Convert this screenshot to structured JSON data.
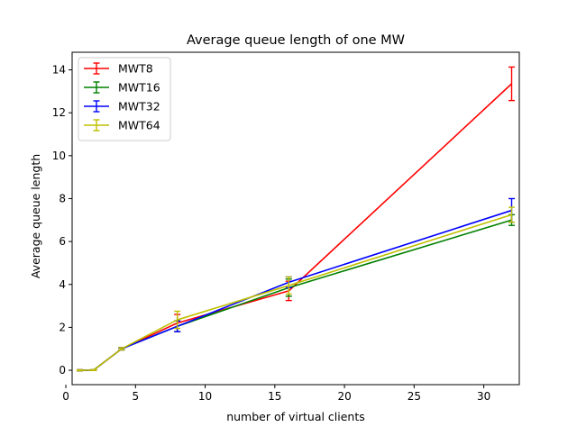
{
  "chart_data": {
    "type": "line",
    "title": "Average queue length of one MW",
    "xlabel": "number of virtual clients",
    "ylabel": "Average queue length",
    "xlim": [
      0.45,
      32.55
    ],
    "ylim": [
      -0.67,
      14.82
    ],
    "xticks": [
      0,
      5,
      10,
      15,
      20,
      25,
      30
    ],
    "yticks": [
      0,
      2,
      4,
      6,
      8,
      10,
      12,
      14
    ],
    "grid": false,
    "legend_position": "top-left",
    "series": [
      {
        "name": "MWT8",
        "color": "#ff0000",
        "points": [
          {
            "x": 1,
            "y": 0.0,
            "err": 0.02
          },
          {
            "x": 2,
            "y": 0.01,
            "err": 0.02
          },
          {
            "x": 4,
            "y": 1.0,
            "err": 0.05
          },
          {
            "x": 8,
            "y": 2.2,
            "err": 0.4
          },
          {
            "x": 16,
            "y": 3.7,
            "err": 0.45
          },
          {
            "x": 32,
            "y": 13.35,
            "err": 0.78
          }
        ]
      },
      {
        "name": "MWT16",
        "color": "#008000",
        "points": [
          {
            "x": 1,
            "y": 0.0,
            "err": 0.02
          },
          {
            "x": 2,
            "y": 0.01,
            "err": 0.02
          },
          {
            "x": 4,
            "y": 1.0,
            "err": 0.05
          },
          {
            "x": 8,
            "y": 2.05,
            "err": 0.25
          },
          {
            "x": 16,
            "y": 3.85,
            "err": 0.4
          },
          {
            "x": 32,
            "y": 7.0,
            "err": 0.25
          }
        ]
      },
      {
        "name": "MWT32",
        "color": "#0000ff",
        "points": [
          {
            "x": 1,
            "y": 0.0,
            "err": 0.02
          },
          {
            "x": 2,
            "y": 0.01,
            "err": 0.02
          },
          {
            "x": 4,
            "y": 1.0,
            "err": 0.05
          },
          {
            "x": 8,
            "y": 2.05,
            "err": 0.25
          },
          {
            "x": 16,
            "y": 4.1,
            "err": 0.25
          },
          {
            "x": 32,
            "y": 7.45,
            "err": 0.55
          }
        ]
      },
      {
        "name": "MWT64",
        "color": "#bfbf00",
        "points": [
          {
            "x": 1,
            "y": 0.0,
            "err": 0.02
          },
          {
            "x": 2,
            "y": 0.01,
            "err": 0.02
          },
          {
            "x": 4,
            "y": 1.0,
            "err": 0.05
          },
          {
            "x": 8,
            "y": 2.35,
            "err": 0.4
          },
          {
            "x": 16,
            "y": 3.95,
            "err": 0.4
          },
          {
            "x": 32,
            "y": 7.25,
            "err": 0.35
          }
        ]
      }
    ]
  }
}
